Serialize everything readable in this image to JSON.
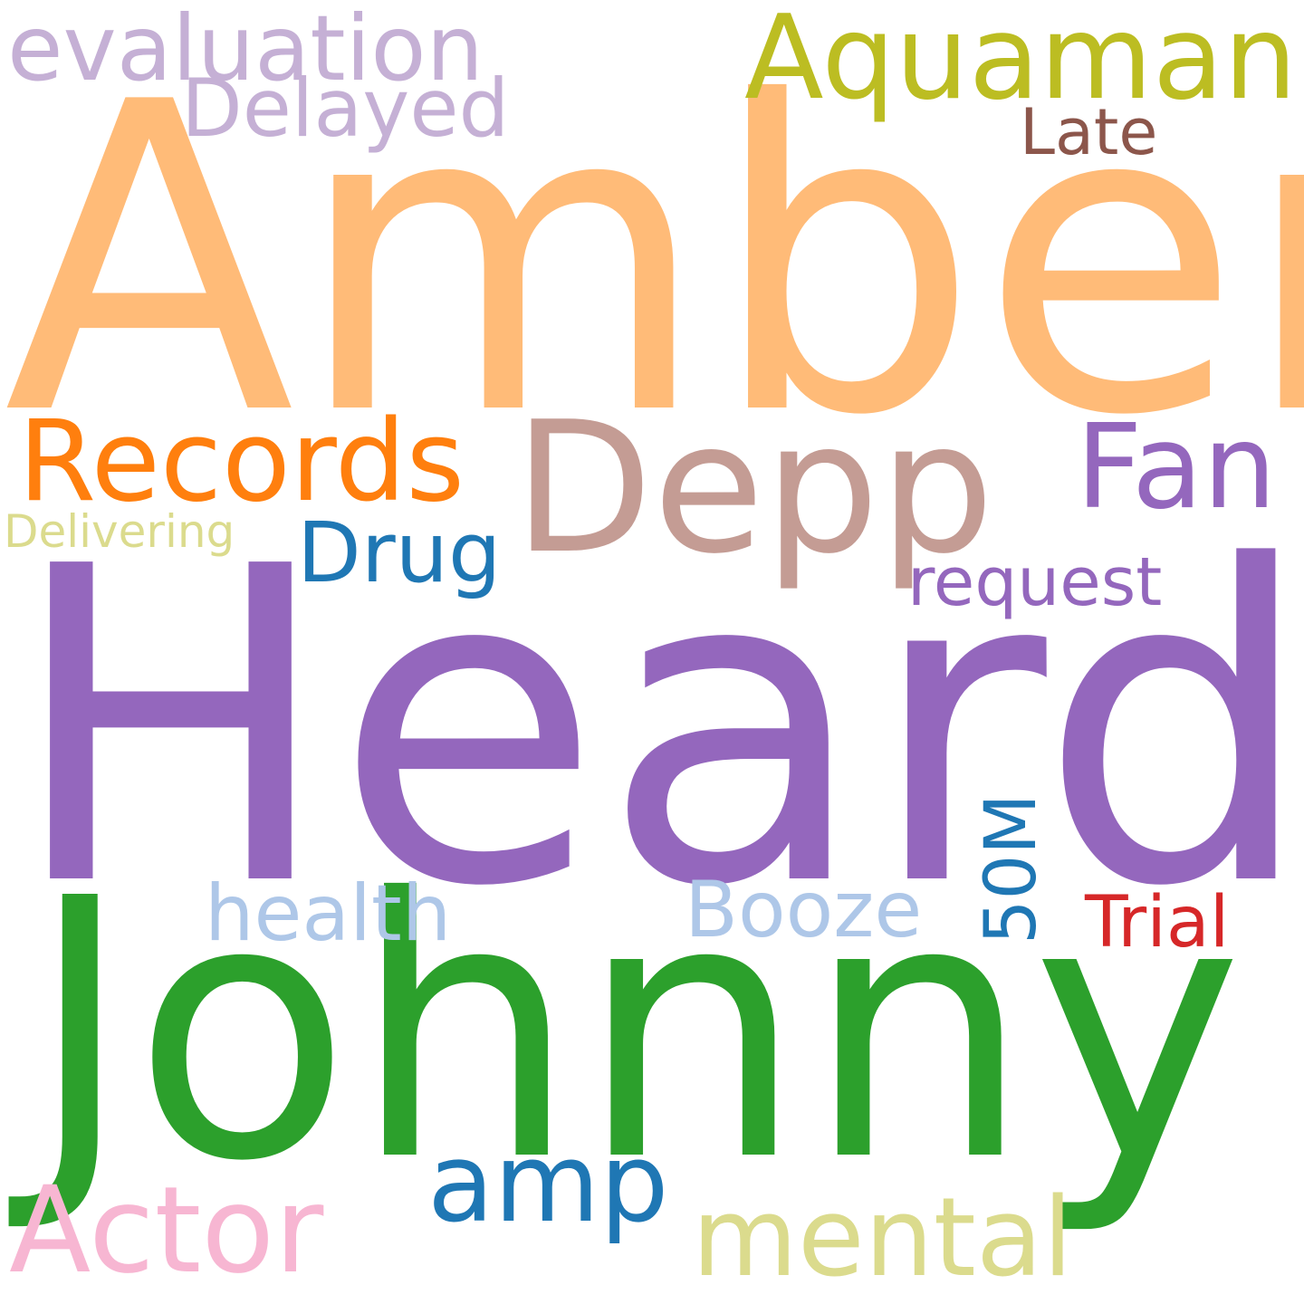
{
  "words": [
    {
      "text": "Heard",
      "color": "#9467bd"
    },
    {
      "text": "Amber",
      "color": "#ffbb78"
    },
    {
      "text": "Johnny",
      "color": "#2ca02c"
    },
    {
      "text": "Depp",
      "color": "#c49c94"
    },
    {
      "text": "Records",
      "color": "#ff7f0e"
    },
    {
      "text": "Aquaman",
      "color": "#bcbd22"
    },
    {
      "text": "Fan",
      "color": "#9467bd"
    },
    {
      "text": "Actor",
      "color": "#f7b6d2"
    },
    {
      "text": "mental",
      "color": "#dbdb8d"
    },
    {
      "text": "amp",
      "color": "#1f77b4"
    },
    {
      "text": "evaluation",
      "color": "#c5b0d5"
    },
    {
      "text": "Delayed",
      "color": "#c5b0d5"
    },
    {
      "text": "Drug",
      "color": "#1f77b4"
    },
    {
      "text": "request",
      "color": "#9467bd"
    },
    {
      "text": "Booze",
      "color": "#aec7e8"
    },
    {
      "text": "health",
      "color": "#aec7e8"
    },
    {
      "text": "Trial",
      "color": "#d62728"
    },
    {
      "text": "50M",
      "color": "#1f77b4"
    },
    {
      "text": "Late",
      "color": "#8c564b"
    },
    {
      "text": "Delivering",
      "color": "#dbdb8d"
    }
  ]
}
